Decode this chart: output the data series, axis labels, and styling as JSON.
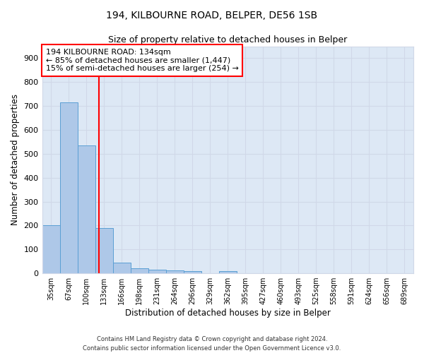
{
  "title1": "194, KILBOURNE ROAD, BELPER, DE56 1SB",
  "title2": "Size of property relative to detached houses in Belper",
  "xlabel": "Distribution of detached houses by size in Belper",
  "ylabel": "Number of detached properties",
  "categories": [
    "35sqm",
    "67sqm",
    "100sqm",
    "133sqm",
    "166sqm",
    "198sqm",
    "231sqm",
    "264sqm",
    "296sqm",
    "329sqm",
    "362sqm",
    "395sqm",
    "427sqm",
    "460sqm",
    "493sqm",
    "525sqm",
    "558sqm",
    "591sqm",
    "624sqm",
    "656sqm",
    "689sqm"
  ],
  "values": [
    200,
    715,
    535,
    190,
    45,
    20,
    15,
    12,
    10,
    0,
    10,
    0,
    0,
    0,
    0,
    0,
    0,
    0,
    0,
    0,
    0
  ],
  "bar_color": "#aec8e8",
  "bar_edge_color": "#5a9fd4",
  "grid_color": "#d0d8e8",
  "background_color": "#dde8f5",
  "red_line_x": 2.72,
  "annotation_line1": "194 KILBOURNE ROAD: 134sqm",
  "annotation_line2": "← 85% of detached houses are smaller (1,447)",
  "annotation_line3": "15% of semi-detached houses are larger (254) →",
  "footer": "Contains HM Land Registry data © Crown copyright and database right 2024.\nContains public sector information licensed under the Open Government Licence v3.0.",
  "ylim": [
    0,
    950
  ],
  "yticks": [
    0,
    100,
    200,
    300,
    400,
    500,
    600,
    700,
    800,
    900
  ]
}
